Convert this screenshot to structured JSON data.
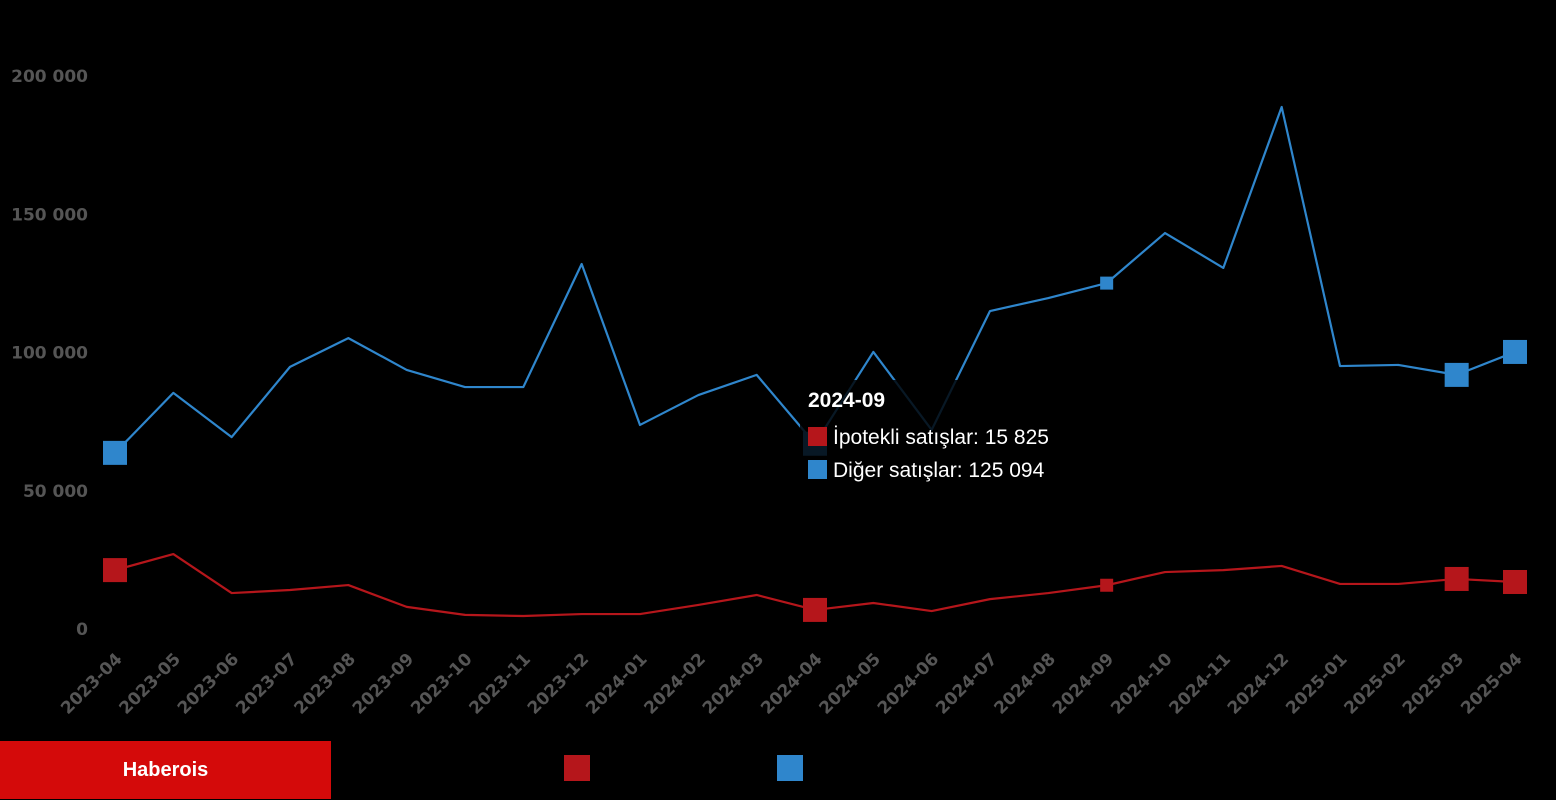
{
  "brand": "Haberois",
  "colors": {
    "ipotekli": "#b5161b",
    "diger": "#2f86cc",
    "axis_text": "#555555"
  },
  "chart_data": {
    "type": "line",
    "title": "",
    "xlabel": "",
    "ylabel": "",
    "ylim": [
      0,
      200000
    ],
    "yticks": [
      0,
      50000,
      100000,
      150000,
      200000
    ],
    "ytick_labels": [
      "0",
      "50 000",
      "100 000",
      "150 000",
      "200 000"
    ],
    "categories": [
      "2023-04",
      "2023-05",
      "2023-06",
      "2023-07",
      "2023-08",
      "2023-09",
      "2023-10",
      "2023-11",
      "2023-12",
      "2024-01",
      "2024-02",
      "2024-03",
      "2024-04",
      "2024-05",
      "2024-06",
      "2024-07",
      "2024-08",
      "2024-09",
      "2024-10",
      "2024-11",
      "2024-12",
      "2025-01",
      "2025-02",
      "2025-03",
      "2025-04"
    ],
    "series": [
      {
        "name": "İpotekli satışlar",
        "color": "#b5161b",
        "values": [
          21300,
          27100,
          13000,
          14100,
          15900,
          8000,
          5100,
          4700,
          5400,
          5400,
          8700,
          12300,
          6900,
          9400,
          6500,
          10800,
          13000,
          15825,
          20600,
          21300,
          22800,
          16300,
          16300,
          18100,
          17000
        ]
      },
      {
        "name": "Diğer satışlar",
        "color": "#2f86cc",
        "values": [
          63700,
          85400,
          69400,
          94800,
          105200,
          93700,
          87500,
          87500,
          132000,
          73800,
          84600,
          91900,
          67000,
          100200,
          72000,
          115000,
          119700,
          125094,
          143200,
          130600,
          188800,
          95100,
          95500,
          91900,
          100200
        ]
      }
    ],
    "markers_large": [
      0,
      12,
      23,
      24
    ],
    "marker_small": 17,
    "legend": "bottom",
    "grid": false
  },
  "tooltip": {
    "title": "2024-09",
    "rows": [
      "İpotekli satışlar: 15 825",
      "Diğer satışlar: 125 094"
    ]
  }
}
